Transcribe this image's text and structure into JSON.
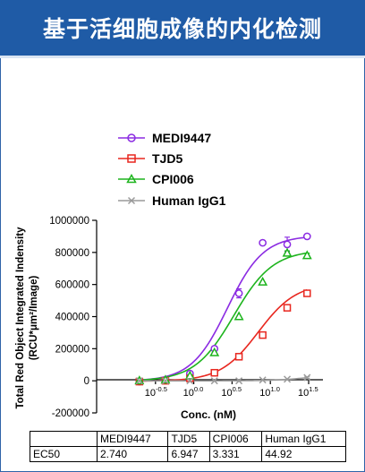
{
  "header": {
    "title": "基于活细胞成像的内化检测"
  },
  "chart_data": {
    "type": "line",
    "title": "",
    "xlabel": "Conc. (nM)",
    "ylabel_line1": "Total Red Object Integrated Indensity",
    "ylabel_line2": "(RCU*μm²/Image)",
    "x_scale": "log10",
    "xlim": [
      -1.0,
      1.5
    ],
    "ylim": [
      -200000,
      1000000
    ],
    "y_ticks": [
      {
        "value": -200000,
        "label": "-200000"
      },
      {
        "value": 0,
        "label": "0"
      },
      {
        "value": 200000,
        "label": "200000"
      },
      {
        "value": 400000,
        "label": "400000"
      },
      {
        "value": 600000,
        "label": "600000"
      },
      {
        "value": 800000,
        "label": "800000"
      },
      {
        "value": 1000000,
        "label": "1000000"
      }
    ],
    "x_ticks": [
      {
        "value": -0.5,
        "base": "10",
        "exp": "-0.5"
      },
      {
        "value": 0.0,
        "base": "10",
        "exp": "0.0"
      },
      {
        "value": 0.5,
        "base": "10",
        "exp": "0.5"
      },
      {
        "value": 1.0,
        "base": "10",
        "exp": "1.0"
      },
      {
        "value": 1.5,
        "base": "10",
        "exp": "1.5"
      }
    ],
    "grid": false,
    "legend_position": "top",
    "series": [
      {
        "name": "MEDI9447",
        "color": "#8b2be2",
        "marker": "circle",
        "log_conc": [
          -0.71,
          -0.37,
          -0.05,
          0.27,
          0.59,
          0.9,
          1.22,
          1.48
        ],
        "values": [
          -5000,
          5000,
          45000,
          200000,
          545000,
          860000,
          850000,
          900000
        ],
        "errors": [
          0,
          0,
          0,
          0,
          28000,
          0,
          45000,
          0
        ],
        "curve": {
          "bottom": -2000,
          "top": 905000,
          "log_ec50": 0.438,
          "hill": 1.85
        }
      },
      {
        "name": "TJD5",
        "color": "#e8271f",
        "marker": "square",
        "log_conc": [
          -0.71,
          -0.37,
          -0.05,
          0.27,
          0.59,
          0.9,
          1.22,
          1.48
        ],
        "values": [
          -5000,
          0,
          15000,
          50000,
          150000,
          285000,
          455000,
          545000
        ],
        "errors": [
          0,
          0,
          0,
          0,
          0,
          0,
          0,
          15000
        ],
        "curve": {
          "bottom": -3000,
          "top": 610000,
          "log_ec50": 0.842,
          "hill": 1.75
        }
      },
      {
        "name": "CPI006",
        "color": "#1db41d",
        "marker": "triangle",
        "log_conc": [
          -0.71,
          -0.37,
          -0.05,
          0.27,
          0.59,
          0.9,
          1.22,
          1.48
        ],
        "values": [
          0,
          5000,
          30000,
          175000,
          400000,
          615000,
          795000,
          780000
        ],
        "errors": [
          0,
          0,
          0,
          0,
          0,
          0,
          15000,
          15000
        ],
        "curve": {
          "bottom": -2000,
          "top": 815000,
          "log_ec50": 0.523,
          "hill": 1.7
        }
      },
      {
        "name": "Human IgG1",
        "color": "#9a9a9a",
        "marker": "x",
        "log_conc": [
          -0.71,
          -0.37,
          -0.05,
          0.27,
          0.59,
          0.9,
          1.22,
          1.48
        ],
        "values": [
          0,
          0,
          0,
          0,
          0,
          5000,
          10000,
          20000
        ],
        "errors": [
          0,
          0,
          0,
          0,
          0,
          0,
          0,
          5000
        ],
        "curve": {
          "bottom": 0,
          "top": 60000,
          "log_ec50": 1.65,
          "hill": 1.8
        }
      }
    ]
  },
  "ec50_table": {
    "row_label": "EC50",
    "headers": [
      "MEDI9447",
      "TJD5",
      "CPI006",
      "Human IgG1"
    ],
    "values": [
      "2.740",
      "6.947",
      "3.331",
      "44.92"
    ]
  },
  "colors": {
    "header_bg": "#1f5ba6",
    "frame": "#2f63a8"
  }
}
